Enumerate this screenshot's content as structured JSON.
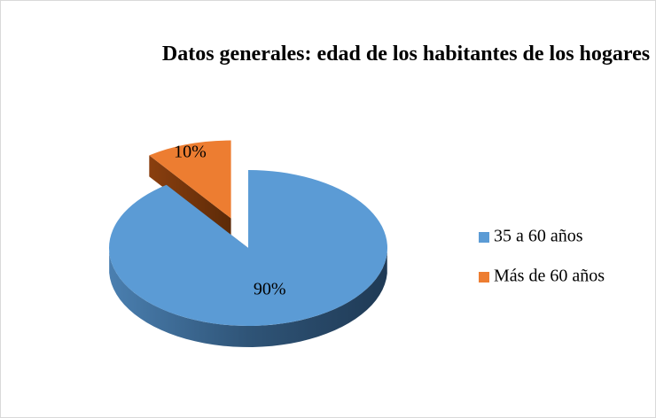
{
  "chart_data": {
    "type": "pie",
    "title": "Datos generales: edad de los habitantes de los hogares",
    "categories": [
      "35 a 60 años",
      "Más de 60 años"
    ],
    "values": [
      90,
      10
    ],
    "value_labels": [
      "90%",
      "10%"
    ],
    "colors": [
      "#5b9bd5",
      "#ed7d31"
    ],
    "legend": "right"
  }
}
